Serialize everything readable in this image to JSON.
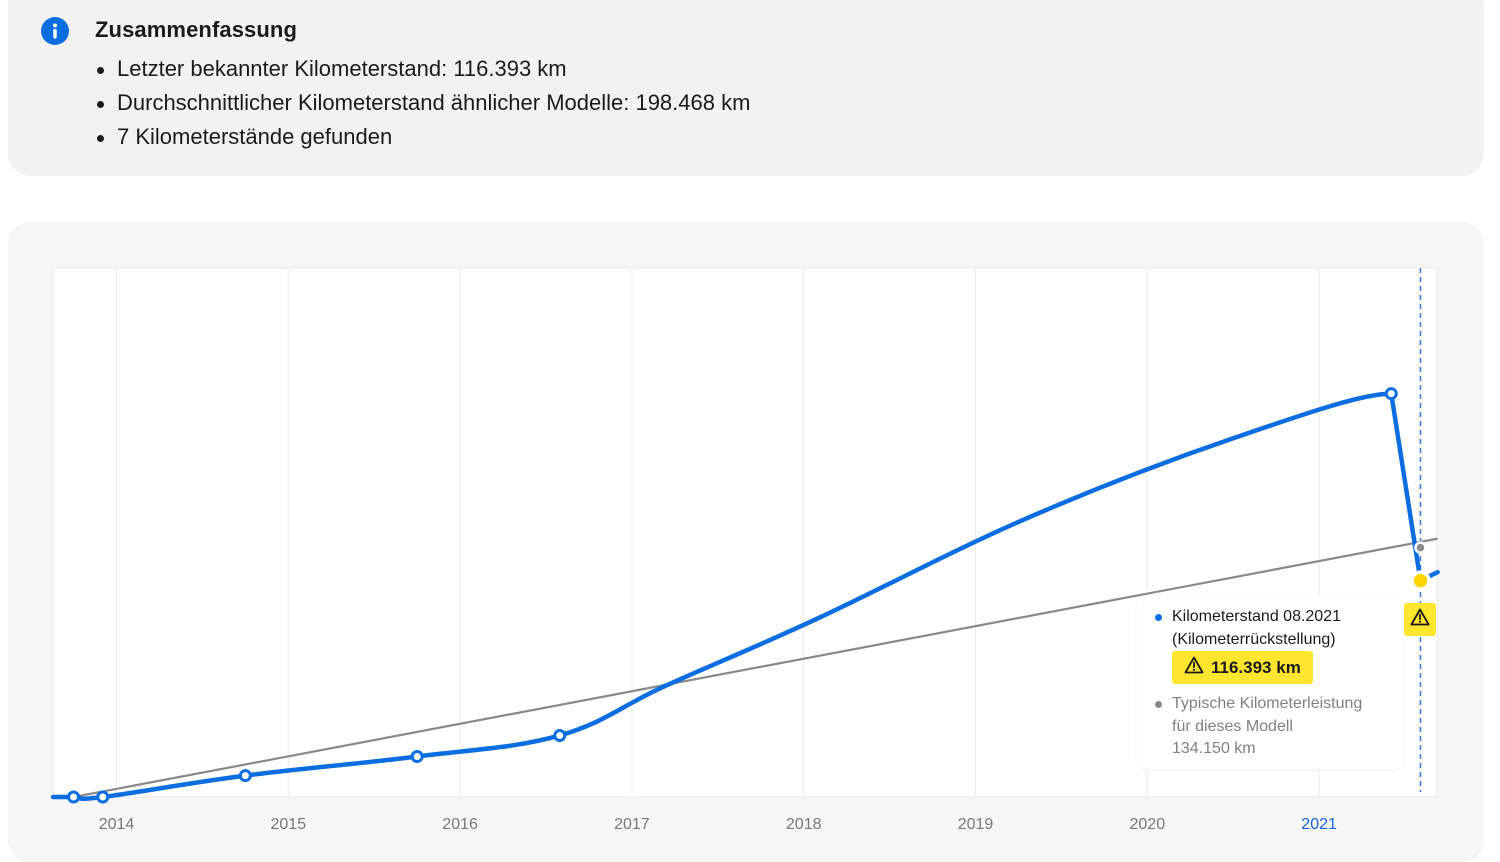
{
  "summary": {
    "title": "Zusammenfassung",
    "items": [
      "Letzter bekannter Kilometerstand: 116.393 km",
      "Durchschnittlicher Kilometerstand ähnlicher Modelle: 198.468 km",
      "7 Kilometerstände gefunden"
    ]
  },
  "tooltip": {
    "title_line1": "Kilometerstand 08.2021",
    "title_line2": "(Kilometerrückstellung)",
    "value": "116.393 km",
    "typical_line1": "Typische Kilometerleistung",
    "typical_line2": "für dieses Modell",
    "typical_value": "134.150 km"
  },
  "colors": {
    "accent": "#0a6ee0",
    "warning": "#ffe62e",
    "typical_line": "#888888"
  },
  "icons": {
    "summary": "info-icon",
    "warning": "warning-icon"
  },
  "chart_data": {
    "type": "line",
    "x_ticks": [
      "2014",
      "2015",
      "2016",
      "2017",
      "2018",
      "2019",
      "2020",
      "2021"
    ],
    "active_tick": "2021",
    "x_range": [
      2013.63,
      2021.69
    ],
    "y_range": [
      0,
      240000
    ],
    "y_axis_labels_shown": false,
    "grid": "vertical",
    "series": [
      {
        "role": "readings",
        "color": "#0a6ee0",
        "points": [
          {
            "x": 2013.75,
            "y": 0
          },
          {
            "x": 2013.92,
            "y": 0
          },
          {
            "x": 2014.75,
            "y": 11500
          },
          {
            "x": 2015.75,
            "y": 21800
          },
          {
            "x": 2016.58,
            "y": 33100
          },
          {
            "x": 2021.42,
            "y": 217000
          },
          {
            "x": 2021.59,
            "y": 116393
          }
        ],
        "curve_through": [
          {
            "x": 2017.2,
            "y": 60000
          },
          {
            "x": 2018.08,
            "y": 96000
          },
          {
            "x": 2019.3,
            "y": 150000
          },
          {
            "x": 2020.5,
            "y": 193000
          },
          {
            "x": 2021.69,
            "y": 121000
          }
        ],
        "flagged_point": {
          "x": 2021.59,
          "y": 116393,
          "color": "#ffd500"
        }
      },
      {
        "role": "typical",
        "color": "#888888",
        "points": [
          {
            "x": 2013.75,
            "y": 0
          },
          {
            "x": 2021.69,
            "y": 139000
          }
        ],
        "marker": {
          "x": 2021.59,
          "y": 134150
        }
      }
    ],
    "marker_line_x": 2021.59
  }
}
